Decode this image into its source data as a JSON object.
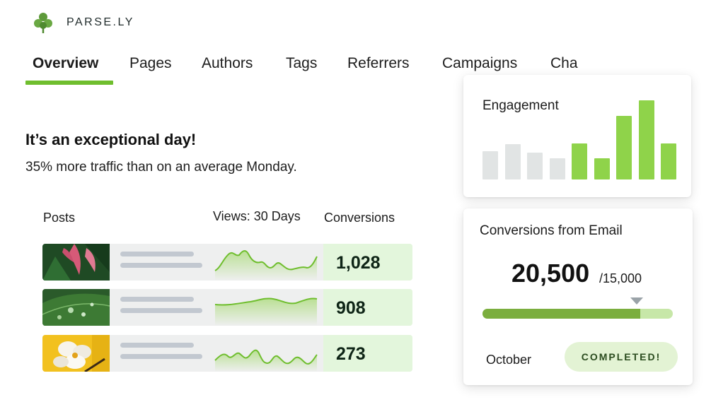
{
  "brand": {
    "name": "PARSE.LY",
    "logo_icon": "parsley-leaf-icon",
    "accent": "#6fbe2e"
  },
  "tabs": [
    {
      "label": "Overview",
      "active": true
    },
    {
      "label": "Pages"
    },
    {
      "label": "Authors"
    },
    {
      "label": "Tags"
    },
    {
      "label": "Referrers"
    },
    {
      "label": "Campaigns"
    },
    {
      "label": "Cha"
    }
  ],
  "summary": {
    "headline": "It’s an exceptional day!",
    "subline": "35% more traffic than on an average Monday."
  },
  "table": {
    "headers": {
      "posts": "Posts",
      "views": "Views: 30 Days",
      "conversions": "Conversions"
    },
    "rows": [
      {
        "thumbnail": "pink-flower-photo",
        "conversions": "1,028"
      },
      {
        "thumbnail": "water-drop-leaf-photo",
        "conversions": "908"
      },
      {
        "thumbnail": "white-orchid-photo",
        "conversions": "273"
      }
    ]
  },
  "engagement": {
    "title": "Engagement",
    "chart_data": {
      "type": "bar",
      "values": [
        40,
        50,
        38,
        30,
        51,
        30,
        90,
        112,
        51
      ],
      "highlighted": [
        false,
        false,
        false,
        false,
        true,
        true,
        true,
        true,
        true
      ],
      "colors": {
        "normal": "#e1e4e4",
        "highlight": "#8fd34a"
      }
    }
  },
  "conversions_card": {
    "title": "Conversions from Email",
    "value": "20,500",
    "target": "/15,000",
    "progress": 0.83,
    "month": "October",
    "status": "COMPLETED!"
  }
}
